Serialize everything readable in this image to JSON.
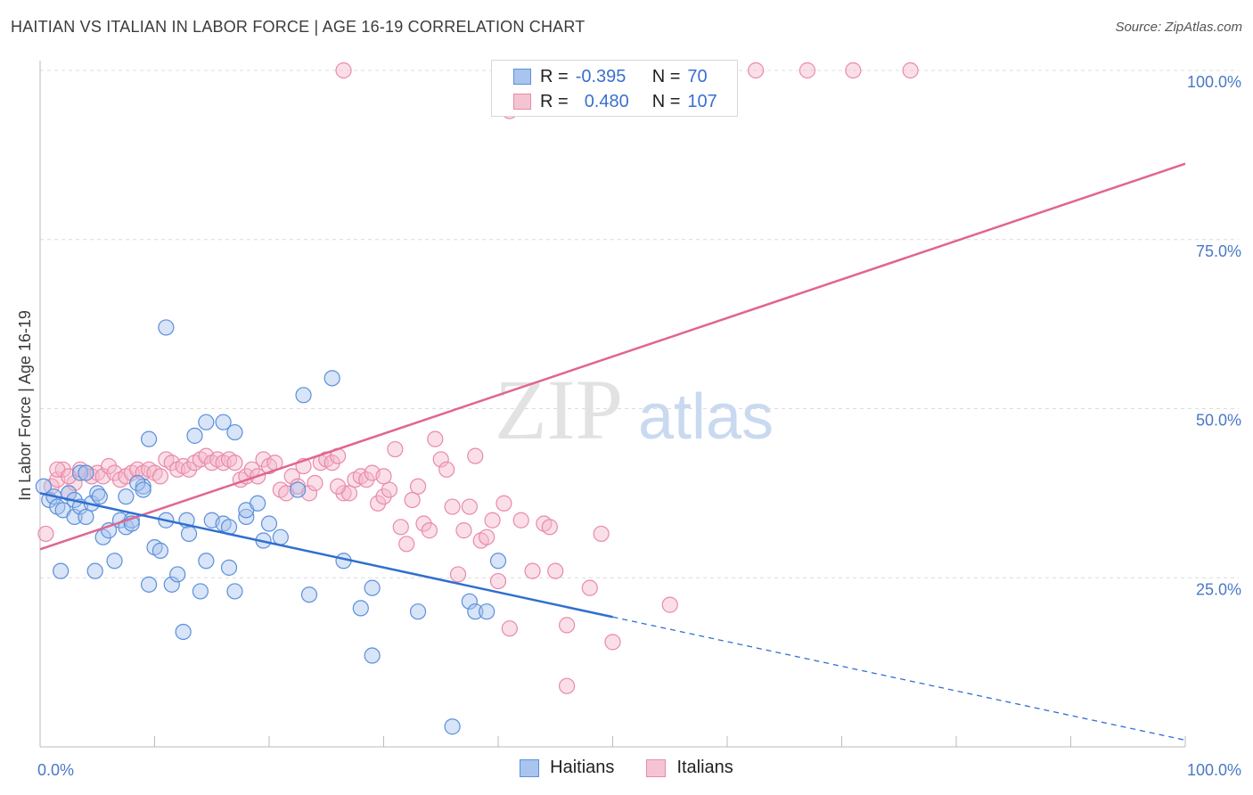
{
  "header": {
    "title": "HAITIAN VS ITALIAN IN LABOR FORCE | AGE 16-19 CORRELATION CHART",
    "source": "Source: ZipAtlas.com"
  },
  "watermark": {
    "zip": "ZIP",
    "atlas": "atlas"
  },
  "legend_top": {
    "rows": [
      {
        "r_label": "R =",
        "r_value": "-0.395",
        "n_label": "N =",
        "n_value": "70"
      },
      {
        "r_label": "R =",
        "r_value": "0.480",
        "n_label": "N =",
        "n_value": "107"
      }
    ]
  },
  "legend_bottom": {
    "haitians": "Haitians",
    "italians": "Italians"
  },
  "colors": {
    "blue_fill": "#a9c4ee",
    "blue_stroke": "#5b8fdc",
    "blue_line": "#2f6fd0",
    "pink_fill": "#f5b8cb",
    "pink_stroke": "#e98aa8",
    "pink_line": "#e0668e",
    "grid": "#dcdcdc",
    "tick_text": "#4a78c8"
  },
  "chart_data": {
    "type": "scatter",
    "title": "HAITIAN VS ITALIAN IN LABOR FORCE | AGE 16-19 CORRELATION CHART",
    "xlabel": "",
    "ylabel": "In Labor Force | Age 16-19",
    "xlim": [
      0,
      100
    ],
    "ylim": [
      0,
      102
    ],
    "y_ticks": [
      25,
      50,
      75,
      100
    ],
    "y_tick_labels": [
      "25.0%",
      "50.0%",
      "75.0%",
      "100.0%"
    ],
    "x_tick_labels": [
      "0.0%",
      "100.0%"
    ],
    "series": [
      {
        "name": "Haitians",
        "r": -0.395,
        "n": 70,
        "trend": {
          "x0": 0,
          "y0": 37.5,
          "x1": 50,
          "y1": 19.2,
          "dashed_to_x": 100,
          "dashed_to_y": 1.0
        },
        "points": [
          [
            0.3,
            38.5
          ],
          [
            0.8,
            36.5
          ],
          [
            1.2,
            37
          ],
          [
            1.5,
            35.5
          ],
          [
            1.8,
            26
          ],
          [
            2,
            35
          ],
          [
            2.5,
            37.5
          ],
          [
            3,
            36.5
          ],
          [
            3,
            34
          ],
          [
            3.5,
            35.5
          ],
          [
            4,
            34
          ],
          [
            4.5,
            36
          ],
          [
            4.8,
            26
          ],
          [
            5,
            37.5
          ],
          [
            5.2,
            37
          ],
          [
            5.5,
            31
          ],
          [
            6,
            32
          ],
          [
            6.5,
            27.5
          ],
          [
            7,
            33.5
          ],
          [
            7.5,
            32.5
          ],
          [
            8,
            33.5
          ],
          [
            8,
            33
          ],
          [
            9,
            38.5
          ],
          [
            9.5,
            24
          ],
          [
            10,
            29.5
          ],
          [
            10.5,
            29
          ],
          [
            11,
            33.5
          ],
          [
            11.5,
            24
          ],
          [
            12,
            25.5
          ],
          [
            12.5,
            17
          ],
          [
            12.8,
            33.5
          ],
          [
            13,
            31.5
          ],
          [
            14,
            23
          ],
          [
            14.5,
            27.5
          ],
          [
            15,
            33.5
          ],
          [
            16,
            33
          ],
          [
            16.5,
            32.5
          ],
          [
            16.5,
            26.5
          ],
          [
            17,
            23
          ],
          [
            18,
            34
          ],
          [
            18,
            35
          ],
          [
            19,
            36
          ],
          [
            19.5,
            30.5
          ],
          [
            20,
            33
          ],
          [
            21,
            31
          ],
          [
            22.5,
            38
          ],
          [
            23,
            52
          ],
          [
            23.5,
            22.5
          ],
          [
            25.5,
            54.5
          ],
          [
            26.5,
            27.5
          ],
          [
            28,
            20.5
          ],
          [
            29,
            23.5
          ],
          [
            29,
            13.5
          ],
          [
            33,
            20
          ],
          [
            36,
            3
          ],
          [
            37.5,
            21.5
          ],
          [
            38,
            20
          ],
          [
            39,
            20
          ],
          [
            40,
            27.5
          ],
          [
            9.5,
            45.5
          ],
          [
            11,
            62
          ],
          [
            13.5,
            46
          ],
          [
            14.5,
            48
          ],
          [
            16,
            48
          ],
          [
            17,
            46.5
          ],
          [
            3.5,
            40.5
          ],
          [
            7.5,
            37
          ],
          [
            8.5,
            39
          ],
          [
            9,
            38
          ],
          [
            4,
            40.5
          ]
        ]
      },
      {
        "name": "Italians",
        "r": 0.48,
        "n": 107,
        "trend": {
          "x0": 0,
          "y0": 29.2,
          "x1": 100,
          "y1": 86.2
        },
        "points": [
          [
            0.5,
            31.5
          ],
          [
            1,
            38.5
          ],
          [
            1.5,
            39.5
          ],
          [
            2,
            41
          ],
          [
            2.5,
            37.5
          ],
          [
            3,
            39
          ],
          [
            3.5,
            41
          ],
          [
            4,
            40.5
          ],
          [
            4.5,
            40
          ],
          [
            5,
            40.5
          ],
          [
            5.5,
            40
          ],
          [
            6,
            41.5
          ],
          [
            6.5,
            40.5
          ],
          [
            7,
            39.5
          ],
          [
            7.5,
            40
          ],
          [
            8,
            40.5
          ],
          [
            8.5,
            41
          ],
          [
            9,
            40.5
          ],
          [
            9.5,
            41
          ],
          [
            10,
            40.5
          ],
          [
            10.5,
            40
          ],
          [
            11,
            42.5
          ],
          [
            11.5,
            42
          ],
          [
            12,
            41
          ],
          [
            12.5,
            41.5
          ],
          [
            13,
            41
          ],
          [
            13.5,
            42
          ],
          [
            14,
            42.5
          ],
          [
            14.5,
            43
          ],
          [
            15,
            42
          ],
          [
            15.5,
            42.5
          ],
          [
            16,
            42
          ],
          [
            16.5,
            42.5
          ],
          [
            17,
            42
          ],
          [
            17.5,
            39.5
          ],
          [
            18,
            40
          ],
          [
            18.5,
            41
          ],
          [
            19,
            40
          ],
          [
            19.5,
            42.5
          ],
          [
            20,
            41.5
          ],
          [
            20.5,
            42
          ],
          [
            21,
            38
          ],
          [
            21.5,
            37.5
          ],
          [
            22,
            40
          ],
          [
            22.5,
            38.5
          ],
          [
            23,
            41.5
          ],
          [
            23.5,
            37.5
          ],
          [
            24,
            39
          ],
          [
            24.5,
            42
          ],
          [
            25,
            42.5
          ],
          [
            25.5,
            42
          ],
          [
            26,
            43
          ],
          [
            26.5,
            37.5
          ],
          [
            27,
            37.5
          ],
          [
            27.5,
            39.5
          ],
          [
            28,
            40
          ],
          [
            28.5,
            39.5
          ],
          [
            29,
            40.5
          ],
          [
            29.5,
            36
          ],
          [
            30,
            37
          ],
          [
            30.5,
            38
          ],
          [
            31,
            44
          ],
          [
            31.5,
            32.5
          ],
          [
            32,
            30
          ],
          [
            32.5,
            36.5
          ],
          [
            33,
            38.5
          ],
          [
            33.5,
            33
          ],
          [
            34,
            32
          ],
          [
            34.5,
            45.5
          ],
          [
            35,
            42.5
          ],
          [
            35.5,
            41
          ],
          [
            36,
            35.5
          ],
          [
            36.5,
            25.5
          ],
          [
            37,
            32
          ],
          [
            37.5,
            35.5
          ],
          [
            38,
            43
          ],
          [
            38.5,
            30.5
          ],
          [
            39,
            31
          ],
          [
            39.5,
            33.5
          ],
          [
            40,
            24.5
          ],
          [
            40.5,
            36
          ],
          [
            41,
            17.5
          ],
          [
            42,
            33.5
          ],
          [
            43,
            26
          ],
          [
            44,
            33
          ],
          [
            44.5,
            32.5
          ],
          [
            45,
            26
          ],
          [
            46,
            18
          ],
          [
            46,
            9
          ],
          [
            48,
            23.5
          ],
          [
            49,
            31.5
          ],
          [
            50,
            15.5
          ],
          [
            55,
            21
          ],
          [
            41,
            94
          ],
          [
            47,
            100
          ],
          [
            53,
            100
          ],
          [
            55.5,
            100
          ],
          [
            60,
            100
          ],
          [
            62.5,
            100
          ],
          [
            67,
            100
          ],
          [
            71,
            100
          ],
          [
            76,
            100
          ],
          [
            26.5,
            100
          ],
          [
            1.5,
            41
          ],
          [
            2.5,
            40
          ],
          [
            30,
            40
          ],
          [
            26,
            38.5
          ]
        ]
      }
    ]
  }
}
